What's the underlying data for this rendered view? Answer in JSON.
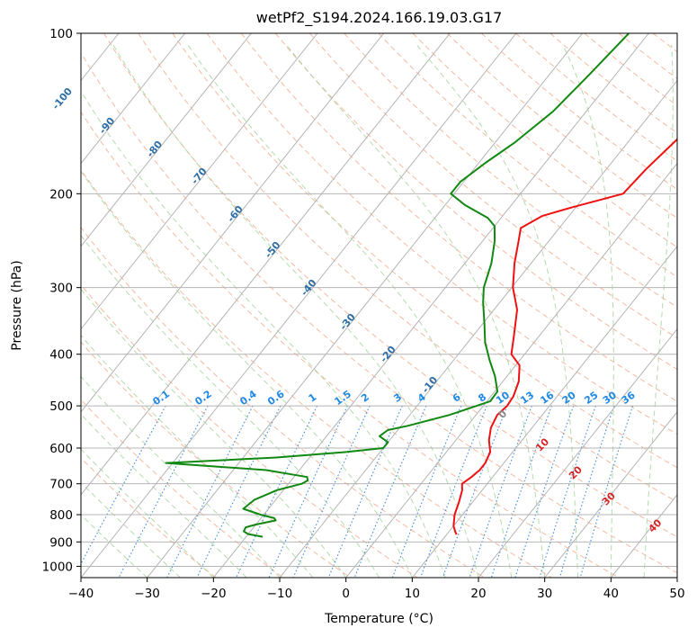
{
  "chart_data": {
    "type": "line",
    "subtype": "skew-t log-p sounding",
    "title": "wetPf2_S194.2024.166.19.03.G17",
    "xlabel": "Temperature (°C)",
    "ylabel": "Pressure (hPa)",
    "xlim": [
      -40,
      50
    ],
    "ylim": [
      1050,
      100
    ],
    "y_scale": "log",
    "grid": true,
    "x_ticks": [
      -40,
      -30,
      -20,
      -10,
      0,
      10,
      20,
      30,
      40,
      50
    ],
    "y_ticks": [
      100,
      200,
      300,
      400,
      500,
      600,
      700,
      800,
      900,
      1000
    ],
    "series": [
      {
        "color": "#ee1111",
        "points": [
          [
            872,
            11.5
          ],
          [
            862,
            11.0
          ],
          [
            840,
            10.0
          ],
          [
            800,
            8.8
          ],
          [
            760,
            8.0
          ],
          [
            720,
            7.0
          ],
          [
            700,
            6.2
          ],
          [
            680,
            6.8
          ],
          [
            660,
            7.2
          ],
          [
            640,
            7.2
          ],
          [
            610,
            6.6
          ],
          [
            580,
            5.0
          ],
          [
            550,
            3.8
          ],
          [
            520,
            3.2
          ],
          [
            500,
            3.6
          ],
          [
            480,
            3.4
          ],
          [
            450,
            2.4
          ],
          [
            420,
            0.6
          ],
          [
            400,
            -2.0
          ],
          [
            370,
            -3.8
          ],
          [
            330,
            -6.5
          ],
          [
            300,
            -9.8
          ],
          [
            270,
            -12.5
          ],
          [
            245,
            -14.6
          ],
          [
            232,
            -15.8
          ],
          [
            220,
            -14.0
          ],
          [
            212,
            -10.5
          ],
          [
            200,
            -4.5
          ],
          [
            180,
            -4.0
          ],
          [
            160,
            -3.0
          ],
          [
            140,
            -2.0
          ],
          [
            120,
            -1.5
          ],
          [
            100,
            -1.0
          ]
        ]
      },
      {
        "color": "#118811",
        "points": [
          [
            880,
            -17.5
          ],
          [
            870,
            -20.0
          ],
          [
            860,
            -21.0
          ],
          [
            845,
            -21.2
          ],
          [
            835,
            -20.0
          ],
          [
            820,
            -17.5
          ],
          [
            812,
            -18.0
          ],
          [
            800,
            -20.5
          ],
          [
            780,
            -23.8
          ],
          [
            750,
            -23.2
          ],
          [
            720,
            -21.0
          ],
          [
            700,
            -18.0
          ],
          [
            690,
            -17.5
          ],
          [
            680,
            -18.0
          ],
          [
            660,
            -25.0
          ],
          [
            640,
            -41.0
          ],
          [
            625,
            -25.0
          ],
          [
            610,
            -15.0
          ],
          [
            600,
            -10.0
          ],
          [
            585,
            -10.0
          ],
          [
            570,
            -12.0
          ],
          [
            555,
            -11.5
          ],
          [
            545,
            -9.0
          ],
          [
            520,
            -4.0
          ],
          [
            500,
            -1.0
          ],
          [
            490,
            0.5
          ],
          [
            470,
            0.4
          ],
          [
            440,
            -1.8
          ],
          [
            410,
            -4.6
          ],
          [
            380,
            -7.4
          ],
          [
            350,
            -9.8
          ],
          [
            320,
            -12.5
          ],
          [
            300,
            -14.2
          ],
          [
            270,
            -16.0
          ],
          [
            245,
            -18.2
          ],
          [
            230,
            -20.0
          ],
          [
            222,
            -22.0
          ],
          [
            210,
            -27.0
          ],
          [
            200,
            -30.5
          ],
          [
            190,
            -30.5
          ],
          [
            175,
            -29.0
          ],
          [
            160,
            -27.0
          ],
          [
            140,
            -25.0
          ],
          [
            120,
            -24.0
          ],
          [
            100,
            -23.0
          ]
        ]
      }
    ],
    "annotations": {
      "dry_adiabat_labels": [
        "-100",
        "-90",
        "-80",
        "-70",
        "-60",
        "-50",
        "-40",
        "-30",
        "-20",
        "-10"
      ],
      "mixing_ratio_labels": [
        "0.1",
        "0.2",
        "0.4",
        "0.6",
        "1",
        "1.5",
        "2",
        "3",
        "4",
        "6",
        "8",
        "10",
        "13",
        "16",
        "20",
        "25",
        "30",
        "36"
      ],
      "moist_adiabat_labels": [
        "0",
        "10",
        "20",
        "30",
        "40"
      ]
    },
    "colors": {
      "isotherm": "#b4b4b4",
      "isobar": "#b4b4b4",
      "dry_adiabat": "#f4a27f",
      "moist_adiabat": "#a8d5a0",
      "mixing_ratio": "#3d8be0",
      "dry_label": "#2e6ea6",
      "mixing_label": "#1e88e5",
      "moist_zero_label": "#888888",
      "moist_label": "#d62728"
    }
  }
}
